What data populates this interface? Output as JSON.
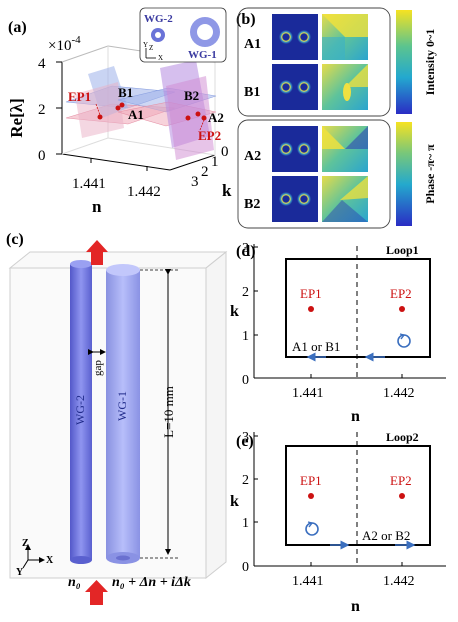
{
  "colors": {
    "ep_red": "#cc1111",
    "wg_blue": "#6a73d8",
    "wg_light": "#9aa4ee",
    "loop_arrow": "#3b6fbf",
    "beam": "#e32626"
  },
  "panel_a": {
    "label": "(a)",
    "scale": "×10",
    "scale_exp": "-4",
    "y_axis_label": "Re[λ]",
    "y_ticks": [
      "4",
      "2",
      "0"
    ],
    "x_axis_label": "n",
    "x_ticks": [
      "1.441",
      "1.442"
    ],
    "k_axis_label": "k",
    "k_ticks": [
      "3",
      "2",
      "1",
      "0"
    ],
    "points": {
      "ep1": "EP1",
      "b1": "B1",
      "a1": "A1",
      "b2": "B2",
      "a2": "A2",
      "ep2": "EP2"
    },
    "inset": {
      "wg2": "WG-2",
      "wg1": "WG-1",
      "axis_y": "Y",
      "axis_z": "Z",
      "axis_x": "X"
    }
  },
  "panel_b": {
    "label": "(b)",
    "rows_top": [
      "A1",
      "B1"
    ],
    "rows_bottom": [
      "A2",
      "B2"
    ],
    "colorbar_intensity": "Intensity  0~1",
    "colorbar_phase": "Phase  -π~ π"
  },
  "panel_c": {
    "label": "(c)",
    "wg2": "WG-2",
    "wg1": "WG-1",
    "gap": "gap",
    "length": "L=10 mm",
    "n0": "n₀",
    "n_expr": "n₀ + Δn + iΔk",
    "axis_z": "Z",
    "axis_x": "X",
    "axis_y": "Y"
  },
  "panel_d": {
    "label": "(d)",
    "loop": "Loop1",
    "ep1": "EP1",
    "ep2": "EP2",
    "state": "A1 or B1",
    "x_ticks": [
      "1.441",
      "1.442"
    ],
    "y_ticks": [
      "3",
      "2",
      "1",
      "0"
    ],
    "x_axis_label": "n",
    "y_axis_label": "k"
  },
  "panel_e": {
    "label": "(e)",
    "loop": "Loop2",
    "ep1": "EP1",
    "ep2": "EP2",
    "state": "A2 or B2",
    "x_ticks": [
      "1.441",
      "1.442"
    ],
    "y_ticks": [
      "3",
      "2",
      "1",
      "0"
    ],
    "x_axis_label": "n",
    "top_n_label": "n",
    "y_axis_label": "k"
  }
}
